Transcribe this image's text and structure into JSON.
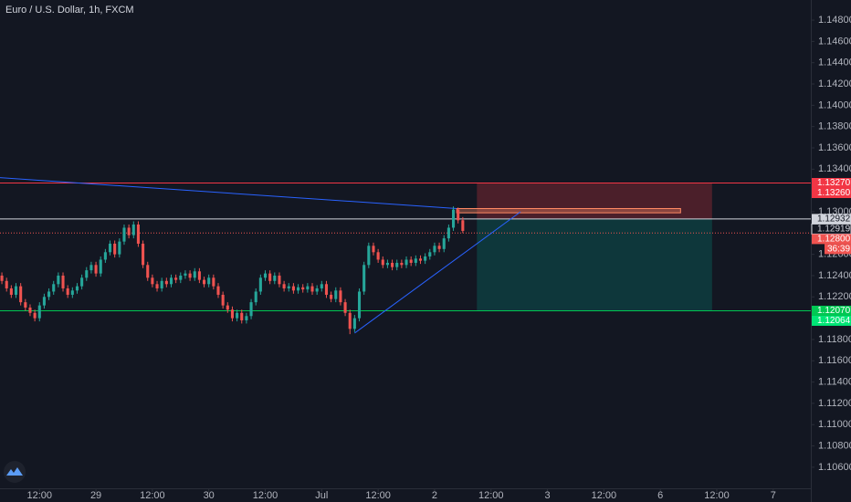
{
  "chart_data": {
    "type": "candlestick",
    "title": "Euro / U.S. Dollar, 1h, FXCM",
    "up_color": "#26a69a",
    "down_color": "#ef5350",
    "xlim": [
      -20.4,
      152
    ],
    "ylim": [
      1.10402,
      1.14989
    ],
    "xticks": [
      {
        "value": -12,
        "label": "12:00"
      },
      {
        "value": 0,
        "label": "29"
      },
      {
        "value": 12,
        "label": "12:00"
      },
      {
        "value": 24,
        "label": "30"
      },
      {
        "value": 36,
        "label": "12:00"
      },
      {
        "value": 48,
        "label": "Jul"
      },
      {
        "value": 60,
        "label": "12:00"
      },
      {
        "value": 72,
        "label": "2"
      },
      {
        "value": 84,
        "label": "12:00"
      },
      {
        "value": 96,
        "label": "3"
      },
      {
        "value": 108,
        "label": "12:00"
      },
      {
        "value": 120,
        "label": "6"
      },
      {
        "value": 132,
        "label": "12:00"
      },
      {
        "value": 144,
        "label": "7"
      }
    ],
    "yticks": [
      {
        "value": 1.148,
        "label": "1.14800"
      },
      {
        "value": 1.146,
        "label": "1.14600"
      },
      {
        "value": 1.144,
        "label": "1.14400"
      },
      {
        "value": 1.142,
        "label": "1.14200"
      },
      {
        "value": 1.14,
        "label": "1.14000"
      },
      {
        "value": 1.138,
        "label": "1.13800"
      },
      {
        "value": 1.136,
        "label": "1.13600"
      },
      {
        "value": 1.134,
        "label": "1.13400"
      },
      {
        "value": 1.13,
        "label": "1.13000"
      },
      {
        "value": 1.126,
        "label": "1.12600"
      },
      {
        "value": 1.124,
        "label": "1.12400"
      },
      {
        "value": 1.122,
        "label": "1.12200"
      },
      {
        "value": 1.118,
        "label": "1.11800"
      },
      {
        "value": 1.116,
        "label": "1.11600"
      },
      {
        "value": 1.114,
        "label": "1.11400"
      },
      {
        "value": 1.112,
        "label": "1.11200"
      },
      {
        "value": 1.11,
        "label": "1.11000"
      },
      {
        "value": 1.108,
        "label": "1.10800"
      },
      {
        "value": 1.106,
        "label": "1.10600"
      }
    ],
    "x": [
      -20,
      -19,
      -18,
      -17,
      -16,
      -15,
      -14,
      -13,
      -12,
      -11,
      -10,
      -9,
      -8,
      -7,
      -6,
      -5,
      -4,
      -3,
      -2,
      -1,
      0,
      1,
      2,
      3,
      4,
      5,
      6,
      7,
      8,
      9,
      10,
      11,
      12,
      13,
      14,
      15,
      16,
      17,
      18,
      19,
      20,
      21,
      22,
      23,
      24,
      25,
      26,
      27,
      28,
      29,
      30,
      31,
      32,
      33,
      34,
      35,
      36,
      37,
      38,
      39,
      40,
      41,
      42,
      43,
      44,
      45,
      46,
      47,
      48,
      49,
      50,
      51,
      52,
      53,
      54,
      55,
      56,
      57,
      58,
      59,
      60,
      61,
      62,
      63,
      64,
      65,
      66,
      67,
      68,
      69,
      70,
      71,
      72,
      73,
      74,
      75,
      76,
      77,
      78
    ],
    "open": [
      1.124,
      1.1235,
      1.1228,
      1.1222,
      1.123,
      1.1215,
      1.121,
      1.1205,
      1.12,
      1.1212,
      1.122,
      1.1225,
      1.1232,
      1.124,
      1.1228,
      1.1222,
      1.1226,
      1.123,
      1.1238,
      1.1245,
      1.125,
      1.1242,
      1.1255,
      1.1262,
      1.127,
      1.126,
      1.1272,
      1.1285,
      1.1278,
      1.1288,
      1.127,
      1.125,
      1.1238,
      1.1232,
      1.1228,
      1.1235,
      1.1232,
      1.1238,
      1.1236,
      1.124,
      1.1242,
      1.1238,
      1.1244,
      1.1236,
      1.1232,
      1.1238,
      1.123,
      1.1222,
      1.1212,
      1.1208,
      1.12,
      1.1205,
      1.1198,
      1.1202,
      1.1215,
      1.1225,
      1.1238,
      1.1242,
      1.1235,
      1.124,
      1.1232,
      1.1228,
      1.123,
      1.1226,
      1.1229,
      1.1227,
      1.123,
      1.1225,
      1.1228,
      1.1232,
      1.1222,
      1.1218,
      1.1226,
      1.1215,
      1.1205,
      1.119,
      1.12,
      1.1225,
      1.125,
      1.1268,
      1.1262,
      1.1255,
      1.125,
      1.1252,
      1.1248,
      1.1252,
      1.125,
      1.1255,
      1.1252,
      1.1256,
      1.1254,
      1.1258,
      1.1262,
      1.1268,
      1.1265,
      1.1275,
      1.1285,
      1.1302,
      1.1292
    ],
    "high": [
      1.1243,
      1.1238,
      1.1231,
      1.1233,
      1.1233,
      1.1218,
      1.1213,
      1.1208,
      1.1215,
      1.1223,
      1.1228,
      1.1235,
      1.1243,
      1.1243,
      1.1231,
      1.1229,
      1.1233,
      1.1241,
      1.1248,
      1.1253,
      1.1253,
      1.1258,
      1.1265,
      1.1273,
      1.1273,
      1.1275,
      1.1288,
      1.1288,
      1.1291,
      1.1291,
      1.1273,
      1.1253,
      1.1241,
      1.1235,
      1.1238,
      1.1238,
      1.1241,
      1.1241,
      1.1243,
      1.1245,
      1.1245,
      1.1247,
      1.1247,
      1.1239,
      1.1241,
      1.1241,
      1.1233,
      1.1225,
      1.1215,
      1.1211,
      1.1208,
      1.1208,
      1.1205,
      1.1218,
      1.1228,
      1.1241,
      1.1245,
      1.1245,
      1.1243,
      1.1243,
      1.1235,
      1.1233,
      1.1233,
      1.1232,
      1.1232,
      1.1233,
      1.1233,
      1.1231,
      1.1235,
      1.1235,
      1.1225,
      1.1229,
      1.1229,
      1.1218,
      1.1208,
      1.1203,
      1.1228,
      1.1253,
      1.1271,
      1.1271,
      1.1265,
      1.1258,
      1.1255,
      1.1255,
      1.1255,
      1.1255,
      1.1258,
      1.1258,
      1.1259,
      1.1259,
      1.1261,
      1.1265,
      1.1271,
      1.1271,
      1.1278,
      1.1288,
      1.1305,
      1.1304,
      1.1295
    ],
    "low": [
      1.1232,
      1.1225,
      1.1219,
      1.1219,
      1.1212,
      1.1207,
      1.1202,
      1.1197,
      1.1197,
      1.1209,
      1.1217,
      1.1222,
      1.1229,
      1.1225,
      1.1219,
      1.1219,
      1.1223,
      1.1227,
      1.1235,
      1.1242,
      1.1239,
      1.1239,
      1.1252,
      1.1259,
      1.1257,
      1.1257,
      1.1269,
      1.1275,
      1.1275,
      1.1267,
      1.1247,
      1.1235,
      1.1229,
      1.1225,
      1.1225,
      1.1229,
      1.1229,
      1.1233,
      1.1233,
      1.1237,
      1.1235,
      1.1235,
      1.1233,
      1.1229,
      1.1229,
      1.1227,
      1.1219,
      1.1209,
      1.1205,
      1.1197,
      1.1197,
      1.1195,
      1.1195,
      1.1199,
      1.1212,
      1.1222,
      1.1235,
      1.1232,
      1.1232,
      1.1229,
      1.1225,
      1.1225,
      1.1223,
      1.1223,
      1.1224,
      1.1224,
      1.1222,
      1.1222,
      1.1225,
      1.1219,
      1.1215,
      1.1215,
      1.1212,
      1.1202,
      1.1185,
      1.1187,
      1.1197,
      1.1222,
      1.1247,
      1.1259,
      1.1252,
      1.1247,
      1.1247,
      1.1245,
      1.1245,
      1.1247,
      1.1247,
      1.1249,
      1.1249,
      1.1251,
      1.1251,
      1.1255,
      1.1259,
      1.1262,
      1.1262,
      1.1272,
      1.1282,
      1.1289,
      1.128
    ],
    "close": [
      1.1235,
      1.1228,
      1.1222,
      1.123,
      1.1215,
      1.121,
      1.1205,
      1.12,
      1.1212,
      1.122,
      1.1225,
      1.1232,
      1.124,
      1.1228,
      1.1222,
      1.1226,
      1.123,
      1.1238,
      1.1245,
      1.125,
      1.1242,
      1.1255,
      1.1262,
      1.127,
      1.126,
      1.1272,
      1.1285,
      1.1278,
      1.1288,
      1.127,
      1.125,
      1.1238,
      1.1232,
      1.1228,
      1.1235,
      1.1232,
      1.1238,
      1.1236,
      1.124,
      1.1242,
      1.1238,
      1.1244,
      1.1236,
      1.1232,
      1.1238,
      1.123,
      1.1222,
      1.1212,
      1.1208,
      1.12,
      1.1205,
      1.1198,
      1.1202,
      1.1215,
      1.1225,
      1.1238,
      1.1242,
      1.1235,
      1.124,
      1.1232,
      1.1228,
      1.123,
      1.1226,
      1.1229,
      1.1227,
      1.123,
      1.1225,
      1.1228,
      1.1232,
      1.1222,
      1.1218,
      1.1226,
      1.1215,
      1.1205,
      1.119,
      1.12,
      1.1225,
      1.125,
      1.1268,
      1.1262,
      1.1255,
      1.125,
      1.1252,
      1.1248,
      1.1252,
      1.125,
      1.1255,
      1.1252,
      1.1256,
      1.1254,
      1.1258,
      1.1262,
      1.1268,
      1.1265,
      1.1275,
      1.1285,
      1.1302,
      1.1292,
      1.1282
    ],
    "price_lines": [
      {
        "value": 1.1327,
        "color": "#f23645",
        "style": "solid"
      },
      {
        "value": 1.12932,
        "color": "#d1d4dc",
        "style": "solid"
      },
      {
        "value": 1.128,
        "color": "#ef5350",
        "style": "dotted"
      },
      {
        "value": 1.1207,
        "color": "#00c853",
        "style": "solid"
      }
    ],
    "axis_labels": [
      {
        "value": 1.1327,
        "label": "1.13270",
        "color": "#f23645"
      },
      {
        "value": 1.1326,
        "label": "1.13260",
        "color": "#f23645"
      },
      {
        "value": 1.12932,
        "label": "1.12932",
        "color": "#d1d4dc"
      },
      {
        "value": 1.12919,
        "label": "1.12919",
        "color": "#131722"
      },
      {
        "value": 1.128,
        "label": "1.12800",
        "color": "#ef5350"
      },
      {
        "value": 1.1207,
        "label": "1.12070",
        "color": "#00c853"
      },
      {
        "value": 1.12064,
        "label": "1.12064",
        "color": "#00e676"
      }
    ],
    "countdown": "36:39",
    "position": {
      "x": [
        81,
        131
      ],
      "entry": 1.12932,
      "stop": 1.1327,
      "target": 1.1207
    },
    "rectangle": {
      "x": [
        76.7,
        124.3
      ],
      "y": [
        1.1299,
        1.1303
      ]
    },
    "trendlines": [
      {
        "x": [
          -20.4,
          76.7
        ],
        "y": [
          1.1332,
          1.1303
        ],
        "color": "#2962ff"
      },
      {
        "x": [
          55,
          90.3
        ],
        "y": [
          1.1186,
          1.13
        ],
        "color": "#2962ff"
      }
    ]
  }
}
